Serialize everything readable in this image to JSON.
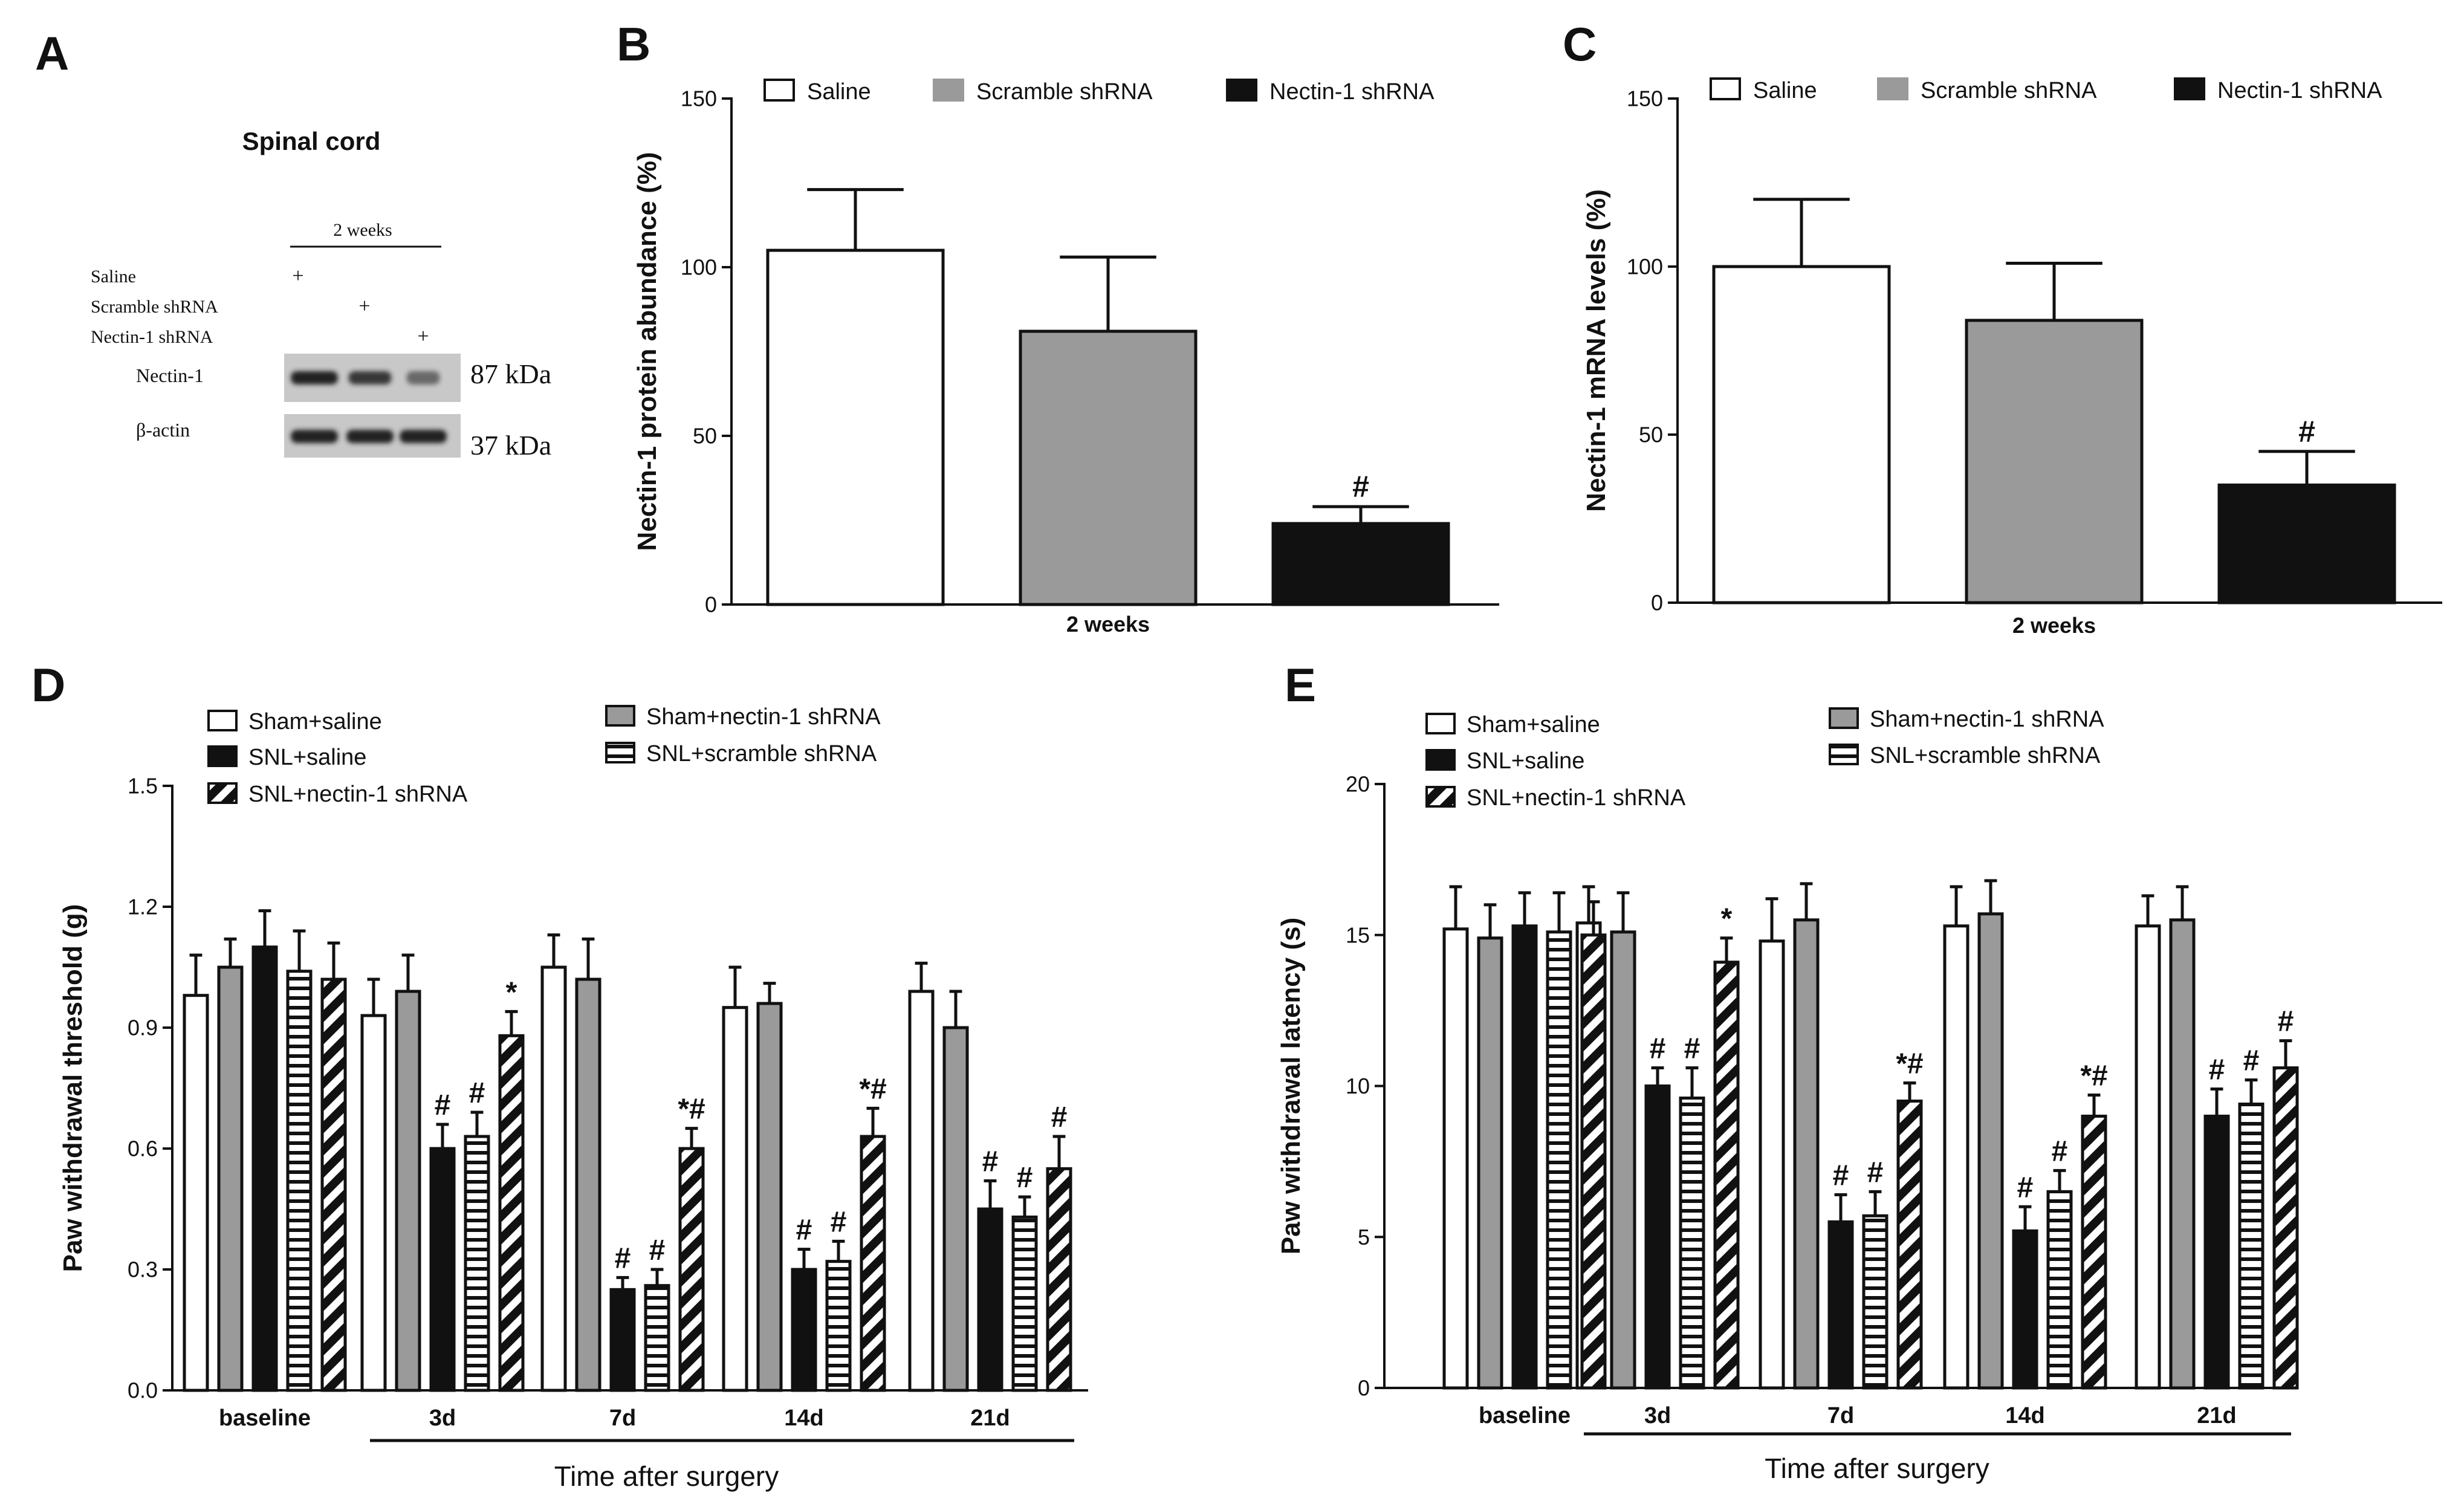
{
  "panels": {
    "a": "A",
    "b": "B",
    "c": "C",
    "d": "D",
    "e": "E"
  },
  "colors": {
    "black": "#111111",
    "gray": "#9a9a9a",
    "white": "#ffffff",
    "blot": "#c8c8c8",
    "band": "#222222"
  },
  "western_blot": {
    "title": "Spinal cord",
    "timepoint": "2 weeks",
    "rows": [
      {
        "label": "Saline",
        "mark": "+",
        "lane": 0
      },
      {
        "label": "Scramble shRNA",
        "mark": "+",
        "lane": 1
      },
      {
        "label": "Nectin-1 shRNA",
        "mark": "+",
        "lane": 2
      }
    ],
    "bands": [
      {
        "label": "Nectin-1",
        "size": "87 kDa",
        "intensity": [
          1.0,
          0.8,
          0.35
        ]
      },
      {
        "label": "β-actin",
        "size": "37 kDa",
        "intensity": [
          1.0,
          1.0,
          1.0
        ]
      }
    ]
  },
  "chart_data": [
    {
      "id": "b",
      "type": "bar",
      "ylabel": "Nectin-1 protein abundance (%)",
      "xlabel": "2 weeks",
      "ylim": [
        0,
        150
      ],
      "yticks": [
        0,
        50,
        100,
        150
      ],
      "categories": [
        "2 weeks"
      ],
      "series": [
        {
          "name": "Saline",
          "fill": "white",
          "values": [
            105
          ],
          "error": [
            18
          ],
          "marks": [
            ""
          ]
        },
        {
          "name": "Scramble shRNA",
          "fill": "gray",
          "values": [
            81
          ],
          "error": [
            22
          ],
          "marks": [
            ""
          ]
        },
        {
          "name": "Nectin-1 shRNA",
          "fill": "black",
          "values": [
            24
          ],
          "error": [
            5
          ],
          "marks": [
            "#"
          ]
        }
      ]
    },
    {
      "id": "c",
      "type": "bar",
      "ylabel": "Nectin-1 mRNA levels (%)",
      "xlabel": "2 weeks",
      "ylim": [
        0,
        150
      ],
      "yticks": [
        0,
        50,
        100,
        150
      ],
      "categories": [
        "2 weeks"
      ],
      "series": [
        {
          "name": "Saline",
          "fill": "white",
          "values": [
            100
          ],
          "error": [
            20
          ],
          "marks": [
            ""
          ]
        },
        {
          "name": "Scramble shRNA",
          "fill": "gray",
          "values": [
            84
          ],
          "error": [
            17
          ],
          "marks": [
            ""
          ]
        },
        {
          "name": "Nectin-1 shRNA",
          "fill": "black",
          "values": [
            35
          ],
          "error": [
            10
          ],
          "marks": [
            "#"
          ]
        }
      ]
    },
    {
      "id": "d",
      "type": "bar",
      "ylabel": "Paw withdrawal threshold (g)",
      "xlabel": "Time after surgery",
      "ylim": [
        0,
        1.5
      ],
      "yticks": [
        "0.0",
        "0.3",
        "0.6",
        "0.9",
        "1.2",
        "1.5"
      ],
      "categories": [
        "baseline",
        "3d",
        "7d",
        "14d",
        "21d"
      ],
      "series": [
        {
          "name": "Sham+saline",
          "fill": "white",
          "values": [
            0.98,
            0.93,
            1.05,
            0.95,
            0.99
          ],
          "error": [
            0.1,
            0.09,
            0.08,
            0.1,
            0.07
          ],
          "marks": [
            "",
            "",
            "",
            "",
            ""
          ]
        },
        {
          "name": "Sham+nectin-1 shRNA",
          "fill": "gray",
          "values": [
            1.05,
            0.99,
            1.02,
            0.96,
            0.9
          ],
          "error": [
            0.07,
            0.09,
            0.1,
            0.05,
            0.09
          ],
          "marks": [
            "",
            "",
            "",
            "",
            ""
          ]
        },
        {
          "name": "SNL+saline",
          "fill": "black",
          "values": [
            1.1,
            0.6,
            0.25,
            0.3,
            0.45
          ],
          "error": [
            0.09,
            0.06,
            0.03,
            0.05,
            0.07
          ],
          "marks": [
            "",
            "#",
            "#",
            "#",
            "#"
          ]
        },
        {
          "name": "SNL+scramble shRNA",
          "fill": "hstripe",
          "values": [
            1.04,
            0.63,
            0.26,
            0.32,
            0.43
          ],
          "error": [
            0.1,
            0.06,
            0.04,
            0.05,
            0.05
          ],
          "marks": [
            "",
            "#",
            "#",
            "#",
            "#"
          ]
        },
        {
          "name": "SNL+nectin-1 shRNA",
          "fill": "diag",
          "values": [
            1.02,
            0.88,
            0.6,
            0.63,
            0.55
          ],
          "error": [
            0.09,
            0.06,
            0.05,
            0.07,
            0.08
          ],
          "marks": [
            "",
            "*",
            "*#",
            "*#",
            "#"
          ]
        }
      ]
    },
    {
      "id": "e",
      "type": "bar",
      "ylabel": "Paw withdrawal latency (s)",
      "xlabel": "Time after surgery",
      "ylim": [
        0,
        20
      ],
      "yticks": [
        "0",
        "5",
        "10",
        "15",
        "20"
      ],
      "categories": [
        "baseline",
        "3d",
        "7d",
        "14d",
        "21d"
      ],
      "series": [
        {
          "name": "Sham+saline",
          "fill": "white",
          "values": [
            15.2,
            15.4,
            14.8,
            15.3,
            15.3
          ],
          "error": [
            1.4,
            1.2,
            1.4,
            1.3,
            1.0
          ],
          "marks": [
            "",
            "",
            "",
            "",
            ""
          ]
        },
        {
          "name": "Sham+nectin-1 shRNA",
          "fill": "gray",
          "values": [
            14.9,
            15.1,
            15.5,
            15.7,
            15.5
          ],
          "error": [
            1.1,
            1.3,
            1.2,
            1.1,
            1.1
          ],
          "marks": [
            "",
            "",
            "",
            "",
            ""
          ]
        },
        {
          "name": "SNL+saline",
          "fill": "black",
          "values": [
            15.3,
            10.0,
            5.5,
            5.2,
            9.0
          ],
          "error": [
            1.1,
            0.6,
            0.9,
            0.8,
            0.9
          ],
          "marks": [
            "",
            "#",
            "#",
            "#",
            "#"
          ]
        },
        {
          "name": "SNL+scramble shRNA",
          "fill": "hstripe",
          "values": [
            15.1,
            9.6,
            5.7,
            6.5,
            9.4
          ],
          "error": [
            1.3,
            1.0,
            0.8,
            0.7,
            0.8
          ],
          "marks": [
            "",
            "#",
            "#",
            "#",
            "#"
          ]
        },
        {
          "name": "SNL+nectin-1 shRNA",
          "fill": "diag",
          "values": [
            15.0,
            14.1,
            9.5,
            9.0,
            10.6
          ],
          "error": [
            1.1,
            0.8,
            0.6,
            0.7,
            0.9
          ],
          "marks": [
            "",
            "*",
            "*#",
            "*#",
            "#"
          ]
        }
      ]
    }
  ]
}
